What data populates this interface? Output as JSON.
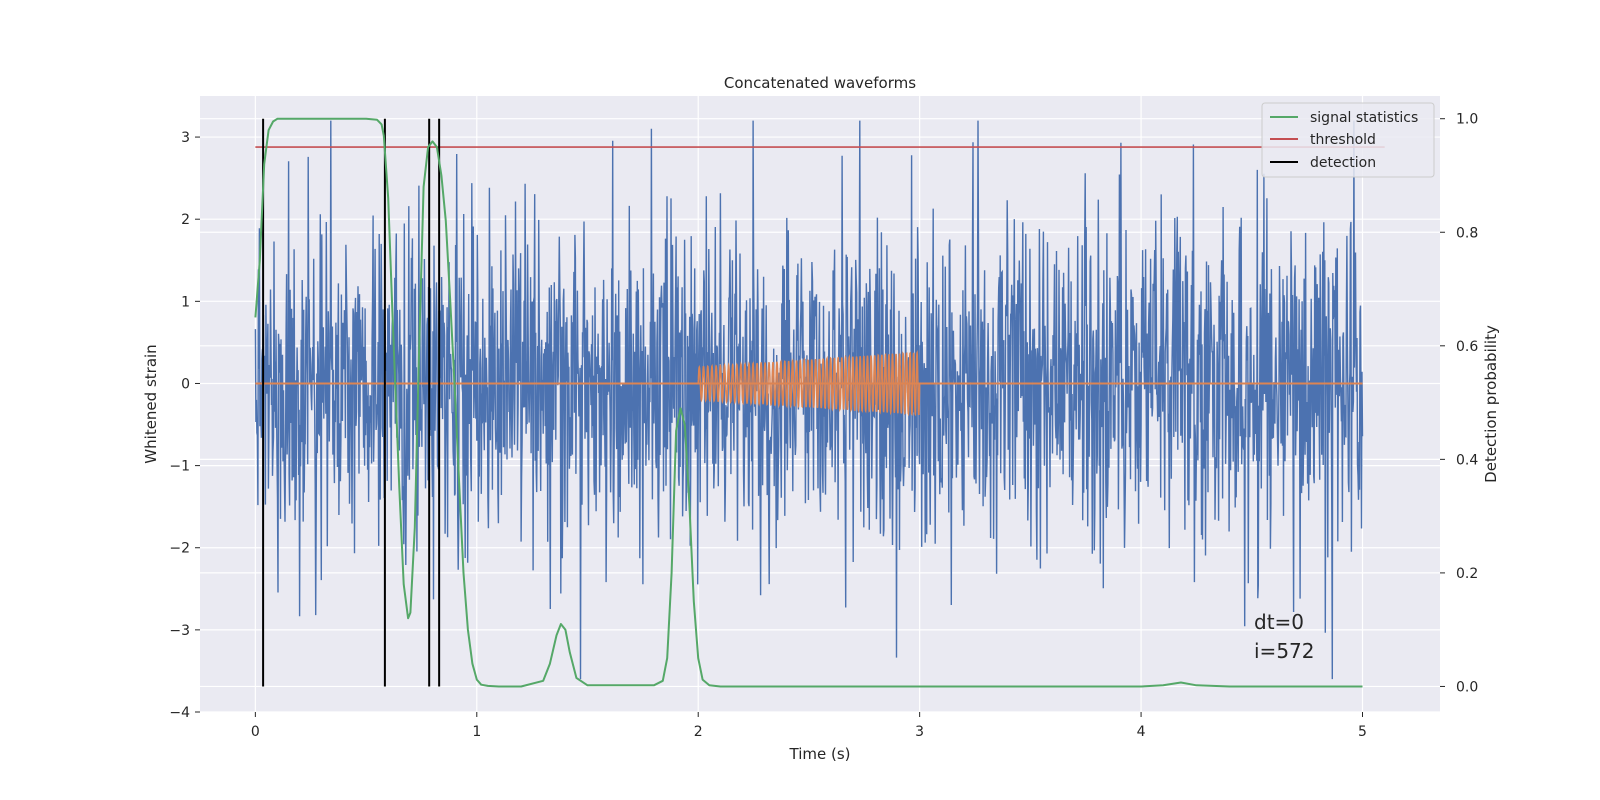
{
  "chart_data": {
    "type": "line",
    "title": "Concatenated waveforms",
    "xlabel": "Time (s)",
    "ylabel": "Whitened strain",
    "ylabel_right": "Detection probability",
    "xlim": [
      -0.25,
      5.35
    ],
    "ylim": [
      -4,
      3.5
    ],
    "ylim_right": [
      -0.045,
      1.04
    ],
    "x_ticks": [
      0,
      1,
      2,
      3,
      4,
      5
    ],
    "y_ticks": [
      -4,
      -3,
      -2,
      -1,
      0,
      1,
      2,
      3
    ],
    "y_ticks_right": [
      0.0,
      0.2,
      0.4,
      0.6,
      0.8,
      1.0
    ],
    "x_tick_labels": [
      "0",
      "1",
      "2",
      "3",
      "4",
      "5"
    ],
    "y_tick_labels": [
      "−4",
      "−3",
      "−2",
      "−1",
      "0",
      "1",
      "2",
      "3"
    ],
    "y_tick_labels_right": [
      "0.0",
      "0.2",
      "0.4",
      "0.6",
      "0.8",
      "1.0"
    ],
    "grid": true,
    "legend_position": "top-right",
    "series": [
      {
        "kind": "noise",
        "axis": "left",
        "color": "#4c72b0",
        "x_range": [
          0,
          5
        ],
        "amplitude_envelope": [
          -3.6,
          3.2
        ],
        "typical_range": [
          -2.5,
          2.5
        ]
      },
      {
        "kind": "injected waveform",
        "axis": "left",
        "color": "#dd8452",
        "baseline": 0,
        "baseline_range": [
          0,
          5
        ],
        "chirp_range": [
          2,
          3
        ],
        "chirp_amplitude_start": 0.2,
        "chirp_amplitude_end": 0.38
      },
      {
        "name": "signal statistics",
        "axis": "right",
        "color": "#55a868",
        "x": [
          0.0,
          0.02,
          0.04,
          0.06,
          0.08,
          0.1,
          0.2,
          0.4,
          0.5,
          0.55,
          0.57,
          0.58,
          0.6,
          0.62,
          0.65,
          0.67,
          0.69,
          0.7,
          0.72,
          0.74,
          0.76,
          0.78,
          0.8,
          0.82,
          0.84,
          0.86,
          0.88,
          0.9,
          0.92,
          0.94,
          0.96,
          0.98,
          1.0,
          1.02,
          1.05,
          1.1,
          1.2,
          1.3,
          1.33,
          1.36,
          1.38,
          1.4,
          1.42,
          1.45,
          1.5,
          1.6,
          1.7,
          1.8,
          1.84,
          1.86,
          1.88,
          1.9,
          1.92,
          1.94,
          1.96,
          1.98,
          2.0,
          2.02,
          2.05,
          2.1,
          2.5,
          3.0,
          4.0,
          4.1,
          4.18,
          4.25,
          4.4,
          5.0
        ],
        "y": [
          0.65,
          0.75,
          0.92,
          0.98,
          0.995,
          1.0,
          1.0,
          1.0,
          1.0,
          0.998,
          0.99,
          0.97,
          0.86,
          0.65,
          0.35,
          0.18,
          0.12,
          0.13,
          0.28,
          0.6,
          0.88,
          0.95,
          0.96,
          0.95,
          0.9,
          0.82,
          0.68,
          0.53,
          0.36,
          0.2,
          0.1,
          0.04,
          0.012,
          0.003,
          0.001,
          0.0,
          0.0,
          0.01,
          0.04,
          0.09,
          0.11,
          0.1,
          0.06,
          0.015,
          0.002,
          0.002,
          0.002,
          0.002,
          0.01,
          0.05,
          0.2,
          0.45,
          0.49,
          0.46,
          0.32,
          0.15,
          0.05,
          0.012,
          0.002,
          0.0,
          0.0,
          0.0,
          0.0,
          0.002,
          0.007,
          0.002,
          0.0,
          0.0
        ]
      },
      {
        "name": "threshold",
        "axis": "right",
        "color": "#c44e52",
        "x": [
          0,
          5.1
        ],
        "y": [
          0.95,
          0.95
        ]
      },
      {
        "name": "detection",
        "axis": "right",
        "color": "#000000",
        "x_values": [
          0.035,
          0.585,
          0.785,
          0.83
        ],
        "y_range": [
          0.0,
          1.0
        ]
      }
    ],
    "legend": [
      "signal statistics",
      "threshold",
      "detection"
    ],
    "annotations": [
      "dt=0",
      "i=572"
    ]
  }
}
